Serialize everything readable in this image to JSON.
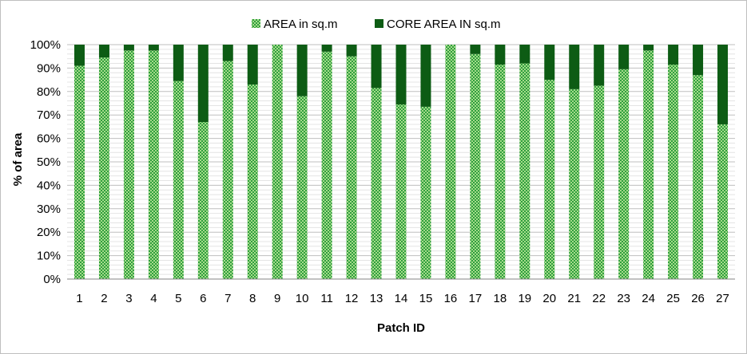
{
  "chart_data": {
    "type": "bar",
    "stacked": true,
    "percent_stacked": true,
    "title": "",
    "xlabel": "Patch ID",
    "ylabel": "% of area",
    "ylim": [
      0,
      100
    ],
    "yticks": [
      "0%",
      "10%",
      "20%",
      "30%",
      "40%",
      "50%",
      "60%",
      "70%",
      "80%",
      "90%",
      "100%"
    ],
    "categories": [
      "1",
      "2",
      "3",
      "4",
      "5",
      "6",
      "7",
      "8",
      "9",
      "10",
      "11",
      "12",
      "13",
      "14",
      "15",
      "16",
      "17",
      "18",
      "19",
      "20",
      "21",
      "22",
      "23",
      "24",
      "25",
      "26",
      "27"
    ],
    "series": [
      {
        "name": "AREA in sq.m",
        "color": "#92d050",
        "pattern": "checker",
        "values": [
          91,
          94.5,
          97.5,
          97.5,
          84.5,
          67,
          93,
          83,
          100,
          78,
          97,
          95,
          81.5,
          74.5,
          73.5,
          100,
          96,
          91.5,
          92,
          85,
          81,
          82.5,
          89.5,
          97.5,
          91.5,
          87,
          66
        ]
      },
      {
        "name": "CORE AREA IN sq.m",
        "color": "#0d5c14",
        "pattern": "solid",
        "values": [
          9,
          5.5,
          2.5,
          2.5,
          15.5,
          33,
          7,
          17,
          0,
          22,
          3,
          5,
          18.5,
          25.5,
          26.5,
          0,
          4,
          8.5,
          8,
          15,
          19,
          17.5,
          10.5,
          2.5,
          8.5,
          13,
          34
        ]
      }
    ],
    "grid": true,
    "legend_position": "top"
  }
}
